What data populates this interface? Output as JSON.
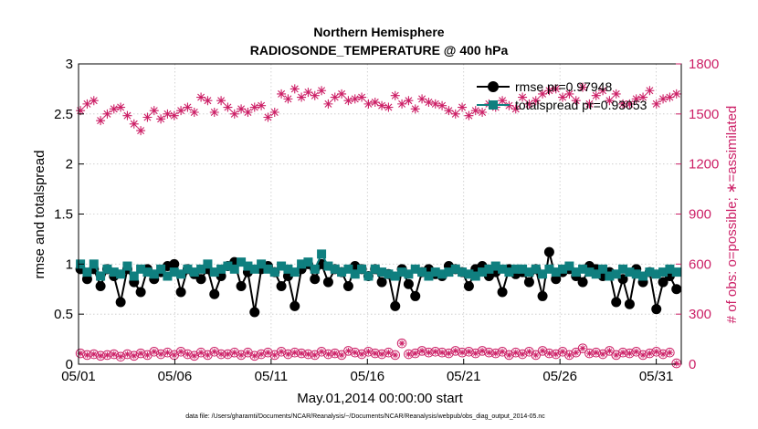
{
  "chart_data": {
    "type": "line",
    "title_line1": "Northern Hemisphere",
    "title_line2": "RADIOSONDE_TEMPERATURE @ 400 hPa",
    "xlabel": "May.01,2014 00:00:00 start",
    "ylabel_left": "rmse and totalspread",
    "ylabel_right": "# of obs: o=possible; ∗=assimilated",
    "footnote": "data file: /Users/gharamti/Documents/NCAR/Reanalysis/~/Documents/NCAR/Reanalysis/webpub/obs_diag_output_2014-05.nc",
    "x_ticks": [
      "05/01",
      "05/06",
      "05/11",
      "05/16",
      "05/21",
      "05/26",
      "05/31"
    ],
    "x_tick_days": [
      0,
      5,
      10,
      15,
      20,
      25,
      30
    ],
    "xlim": [
      0,
      31.3
    ],
    "ylim_left": [
      0,
      3
    ],
    "ylim_right": [
      0,
      1800
    ],
    "yticks_left": [
      "0",
      "0.5",
      "1",
      "1.5",
      "2",
      "2.5",
      "3"
    ],
    "yticks_right": [
      "0",
      "300",
      "600",
      "900",
      "1200",
      "1500",
      "1800"
    ],
    "grid": "dotted",
    "legend_position": "top-right",
    "colors": {
      "rmse": "#000000",
      "totalspread": "#0f7f7f",
      "obs": "#cc1f66"
    },
    "series": [
      {
        "name": "rmse pr=0.97948",
        "axis": "left",
        "values": [
          0.95,
          0.85,
          0.95,
          0.78,
          0.95,
          0.88,
          0.62,
          0.95,
          0.82,
          0.72,
          0.95,
          0.85,
          0.92,
          0.98,
          1.0,
          0.72,
          0.95,
          0.9,
          0.85,
          0.95,
          0.7,
          0.88,
          0.98,
          1.02,
          0.78,
          0.92,
          0.52,
          0.95,
          0.98,
          0.92,
          0.78,
          0.88,
          0.58,
          0.95,
          1.0,
          0.85,
          1.0,
          0.82,
          0.95,
          0.92,
          0.78,
          0.98,
          0.95,
          0.88,
          0.95,
          0.82,
          0.9,
          0.58,
          0.95,
          0.8,
          0.68,
          0.92,
          0.95,
          0.9,
          0.88,
          0.98,
          0.95,
          0.92,
          0.78,
          0.95,
          0.98,
          0.88,
          0.92,
          0.72,
          0.95,
          0.9,
          0.92,
          0.82,
          0.95,
          0.68,
          1.12,
          0.85,
          0.92,
          0.95,
          0.88,
          0.82,
          0.98,
          0.95,
          0.88,
          0.92,
          0.62,
          0.85,
          0.6,
          0.95,
          0.82,
          0.92,
          0.55,
          0.82,
          0.88,
          0.75
        ]
      },
      {
        "name": "totalspread pr=0.93053",
        "axis": "left",
        "values": [
          1.0,
          0.92,
          1.0,
          0.88,
          0.95,
          0.92,
          0.9,
          0.98,
          0.88,
          0.95,
          0.92,
          0.9,
          0.95,
          0.88,
          0.92,
          0.9,
          0.95,
          0.92,
          0.95,
          1.0,
          0.92,
          0.95,
          0.98,
          0.95,
          1.02,
          0.98,
          0.95,
          1.0,
          0.95,
          0.92,
          0.98,
          0.95,
          0.92,
          1.0,
          1.02,
          0.95,
          1.1,
          0.98,
          0.95,
          0.92,
          0.95,
          0.9,
          0.95,
          0.88,
          0.95,
          0.92,
          0.9,
          0.88,
          0.92,
          0.9,
          0.95,
          0.92,
          0.88,
          0.92,
          0.9,
          0.92,
          0.95,
          0.92,
          0.9,
          0.88,
          0.92,
          0.95,
          0.98,
          0.95,
          0.92,
          0.95,
          0.95,
          0.92,
          0.95,
          0.9,
          0.95,
          0.92,
          0.95,
          0.98,
          0.92,
          0.95,
          0.92,
          0.9,
          0.95,
          0.88,
          0.9,
          0.95,
          0.92,
          0.9,
          0.88,
          0.92,
          0.9,
          0.92,
          0.95,
          0.92
        ]
      },
      {
        "name": "possible",
        "axis": "right",
        "values": [
          65,
          55,
          60,
          50,
          55,
          60,
          45,
          60,
          50,
          65,
          55,
          75,
          60,
          70,
          55,
          75,
          60,
          50,
          70,
          55,
          75,
          60,
          60,
          70,
          55,
          70,
          50,
          60,
          70,
          55,
          75,
          60,
          70,
          65,
          60,
          55,
          75,
          60,
          65,
          55,
          80,
          70,
          60,
          75,
          65,
          60,
          70,
          55,
          125,
          60,
          65,
          80,
          70,
          75,
          70,
          65,
          80,
          70,
          75,
          65,
          80,
          70,
          65,
          75,
          55,
          70,
          60,
          75,
          55,
          80,
          65,
          60,
          75,
          55,
          70,
          95,
          65,
          70,
          60,
          80,
          55,
          70,
          65,
          75,
          55,
          65,
          75,
          60,
          70,
          5
        ]
      },
      {
        "name": "assimilated",
        "axis": "right",
        "values": [
          1520,
          1560,
          1580,
          1460,
          1500,
          1530,
          1540,
          1490,
          1440,
          1400,
          1480,
          1520,
          1470,
          1500,
          1490,
          1520,
          1540,
          1510,
          1600,
          1580,
          1510,
          1580,
          1540,
          1500,
          1530,
          1510,
          1540,
          1550,
          1480,
          1510,
          1620,
          1590,
          1650,
          1600,
          1630,
          1610,
          1640,
          1560,
          1600,
          1620,
          1580,
          1590,
          1600,
          1560,
          1570,
          1550,
          1540,
          1610,
          1560,
          1580,
          1530,
          1590,
          1570,
          1560,
          1550,
          1520,
          1500,
          1540,
          1490,
          1520,
          1510,
          1560,
          1540,
          1580,
          1550,
          1530,
          1600,
          1560,
          1580,
          1620,
          1640,
          1650,
          1600,
          1620,
          1580,
          1660,
          1560,
          1610,
          1640,
          1580,
          1620,
          1560,
          1560,
          1590,
          1600,
          1640,
          1560,
          1590,
          1600,
          1620
        ]
      }
    ]
  }
}
